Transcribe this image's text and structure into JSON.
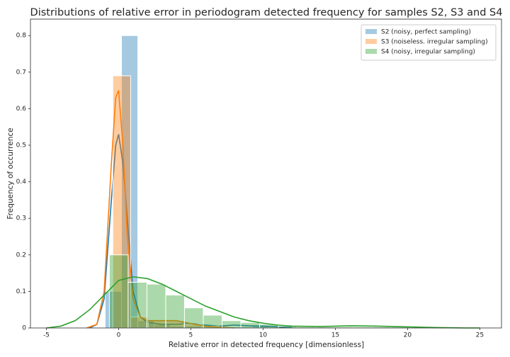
{
  "chart_data": {
    "type": "histogram",
    "title": "Distributions of relative error in periodogram detected frequency for samples S2, S3 and S4",
    "x_label": "Relative error in detected frequency [dimensionless]",
    "y_label": "Frequency of occurrence",
    "xlim": [
      -6.1,
      26.5
    ],
    "ylim": [
      0,
      0.845
    ],
    "xticks": [
      -5,
      0,
      5,
      10,
      15,
      20,
      25
    ],
    "yticks": [
      0.0,
      0.1,
      0.2,
      0.3,
      0.4,
      0.5,
      0.6,
      0.7,
      0.8
    ],
    "legend": "upper right",
    "series": [
      {
        "name": "S2 (noisy, perfect sampling)",
        "color": "#1f77b4",
        "bins": [
          -0.93,
          0.2,
          1.33,
          2.46,
          3.59,
          4.72,
          5.85,
          6.98,
          8.11,
          9.24,
          10.37
        ],
        "counts": [
          0.1,
          0.8,
          0.02,
          0.01,
          0.005,
          0.005,
          0.003,
          0.003,
          0.003,
          0.005
        ],
        "kde_x": [
          -2,
          -1.5,
          -1,
          -0.5,
          -0.2,
          0,
          0.3,
          0.6,
          1,
          1.5,
          2,
          3,
          4,
          5,
          6,
          7,
          8,
          9,
          10,
          11,
          12
        ],
        "kde_y": [
          0,
          0.01,
          0.08,
          0.35,
          0.5,
          0.53,
          0.45,
          0.3,
          0.1,
          0.03,
          0.015,
          0.01,
          0.01,
          0.012,
          0.008,
          0.005,
          0.008,
          0.006,
          0.005,
          0.003,
          0.001
        ]
      },
      {
        "name": "S3 (noiseless. irregular sampling)",
        "color": "#ff7f0e",
        "bins": [
          -0.4,
          0.83,
          2.06,
          3.29,
          4.52,
          5.75,
          6.98
        ],
        "counts": [
          0.69,
          0.03,
          0.02,
          0.02,
          0.01,
          0.005
        ],
        "kde_x": [
          -2.2,
          -1.5,
          -1,
          -0.5,
          -0.2,
          0,
          0.3,
          0.6,
          1,
          1.5,
          2,
          3,
          4,
          5,
          6,
          7,
          8
        ],
        "kde_y": [
          0,
          0.01,
          0.1,
          0.45,
          0.63,
          0.65,
          0.5,
          0.25,
          0.08,
          0.03,
          0.02,
          0.02,
          0.02,
          0.012,
          0.005,
          0.002,
          0
        ]
      },
      {
        "name": "S4 (noisy, irregular sampling)",
        "color": "#2ca02c",
        "bins": [
          -0.64,
          0.66,
          1.96,
          3.26,
          4.56,
          5.86,
          7.16,
          8.46,
          9.76,
          11.06,
          12.36,
          13.66,
          14.96,
          16.26,
          17.56,
          18.86,
          20.16
        ],
        "counts": [
          0.2,
          0.125,
          0.12,
          0.09,
          0.055,
          0.035,
          0.02,
          0.015,
          0.01,
          0.005,
          0.003,
          0.003,
          0.003,
          0.003,
          0.003,
          0.003
        ],
        "kde_x": [
          -5,
          -4,
          -3,
          -2,
          -1,
          0,
          1,
          2,
          3,
          4,
          5,
          6,
          7,
          8,
          9,
          10,
          11,
          12,
          14,
          16,
          18,
          20,
          22,
          24,
          25
        ],
        "kde_y": [
          0,
          0.005,
          0.02,
          0.05,
          0.09,
          0.13,
          0.14,
          0.135,
          0.12,
          0.1,
          0.08,
          0.06,
          0.045,
          0.03,
          0.02,
          0.013,
          0.008,
          0.005,
          0.004,
          0.006,
          0.005,
          0.003,
          0.001,
          0,
          0
        ]
      }
    ]
  }
}
